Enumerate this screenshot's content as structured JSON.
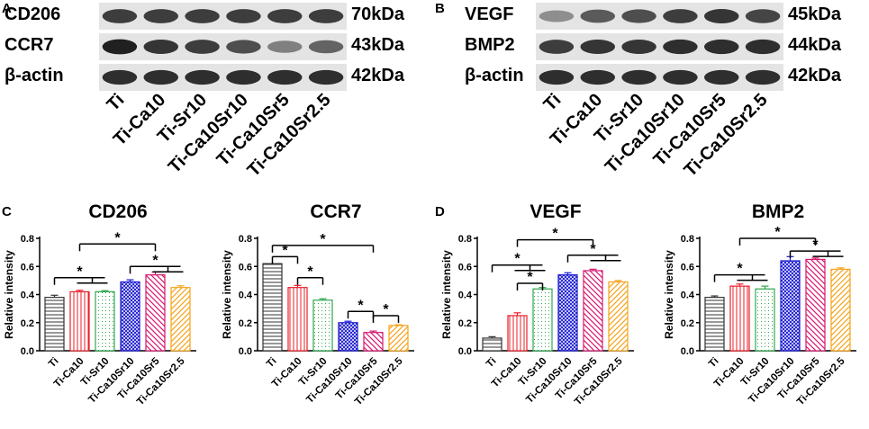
{
  "blots": [
    {
      "panel": "A",
      "rows": [
        {
          "label": "CD206",
          "size": "70kDa",
          "intensities": [
            0.8,
            0.8,
            0.8,
            0.8,
            0.8,
            0.8
          ]
        },
        {
          "label": "CCR7",
          "size": "43kDa",
          "intensities": [
            1.0,
            0.85,
            0.8,
            0.7,
            0.35,
            0.55
          ]
        },
        {
          "label": "β-actin",
          "size": "42kDa",
          "intensities": [
            0.9,
            0.9,
            0.9,
            0.9,
            0.9,
            0.9
          ]
        }
      ],
      "lanes": [
        "Ti",
        "Ti-Ca10",
        "Ti-Sr10",
        "Ti-Ca10Sr10",
        "Ti-Ca10Sr5",
        "Ti-Ca10Sr2.5"
      ]
    },
    {
      "panel": "B",
      "rows": [
        {
          "label": "VEGF",
          "size": "45kDa",
          "intensities": [
            0.25,
            0.6,
            0.7,
            0.8,
            0.85,
            0.75
          ]
        },
        {
          "label": "BMP2",
          "size": "44kDa",
          "intensities": [
            0.8,
            0.85,
            0.85,
            0.9,
            0.9,
            0.9
          ]
        },
        {
          "label": "β-actin",
          "size": "42kDa",
          "intensities": [
            0.9,
            0.9,
            0.9,
            0.9,
            0.9,
            0.9
          ]
        }
      ],
      "lanes": [
        "Ti",
        "Ti-Ca10",
        "Ti-Sr10",
        "Ti-Ca10Sr10",
        "Ti-Ca10Sr5",
        "Ti-Ca10Sr2.5"
      ]
    }
  ],
  "series_colors": [
    "#333333",
    "#e8202a",
    "#2fa84f",
    "#1a1ad1",
    "#d6186f",
    "#f4a31c"
  ],
  "chart_data": [
    {
      "panel": "C",
      "type": "bar",
      "title": "CD206",
      "ylabel": "Relative intensity",
      "ylim": [
        0,
        0.8
      ],
      "yticks": [
        "0.0",
        "0.2",
        "0.4",
        "0.6",
        "0.8"
      ],
      "categories": [
        "Ti",
        "Ti-Ca10",
        "Ti-Sr10",
        "Ti-Ca10Sr10",
        "Ti-Ca10Sr5",
        "Ti-Ca10Sr2.5"
      ],
      "values": [
        0.38,
        0.42,
        0.42,
        0.49,
        0.54,
        0.45
      ],
      "errors": [
        0.015,
        0.01,
        0.008,
        0.015,
        0.02,
        0.012
      ],
      "sig": [
        {
          "from": 0,
          "to": [
            1,
            2
          ],
          "y": 0.52,
          "label": "*"
        },
        {
          "from": 3,
          "to": [
            4,
            5
          ],
          "y": 0.6,
          "label": "*"
        },
        {
          "from": 1,
          "to": [
            4
          ],
          "y": 0.76,
          "label": "*"
        }
      ]
    },
    {
      "panel": "C",
      "type": "bar",
      "title": "CCR7",
      "ylabel": "Relative intensity",
      "ylim": [
        0,
        0.8
      ],
      "yticks": [
        "0.0",
        "0.2",
        "0.4",
        "0.6",
        "0.8"
      ],
      "categories": [
        "Ti",
        "Ti-Ca10",
        "Ti-Sr10",
        "Ti-Ca10Sr10",
        "Ti-Ca10Sr5",
        "Ti-Ca10Sr2.5"
      ],
      "values": [
        0.62,
        0.45,
        0.36,
        0.2,
        0.13,
        0.18
      ],
      "errors": [
        0.0,
        0.015,
        0.01,
        0.01,
        0.01,
        0.005
      ],
      "sig": [
        {
          "from": 0,
          "to": [
            1
          ],
          "y": 0.67,
          "label": "*"
        },
        {
          "from": 1,
          "to": [
            2
          ],
          "y": 0.52,
          "label": "*"
        },
        {
          "from": 3,
          "to": [
            4
          ],
          "y": 0.28,
          "label": "*"
        },
        {
          "from": 4,
          "to": [
            5
          ],
          "y": 0.25,
          "label": "*"
        },
        {
          "from": 0,
          "to": [
            4
          ],
          "y": 0.75,
          "label": "*"
        }
      ]
    },
    {
      "panel": "D",
      "type": "bar",
      "title": "VEGF",
      "ylabel": "Relative intensity",
      "ylim": [
        0,
        0.8
      ],
      "yticks": [
        "0.0",
        "0.2",
        "0.4",
        "0.6",
        "0.8"
      ],
      "categories": [
        "Ti",
        "Ti-Ca10",
        "Ti-Sr10",
        "Ti-Ca10Sr10",
        "Ti-Ca10Sr5",
        "Ti-Ca10Sr2.5"
      ],
      "values": [
        0.09,
        0.25,
        0.44,
        0.54,
        0.57,
        0.49
      ],
      "errors": [
        0.01,
        0.02,
        0.01,
        0.015,
        0.01,
        0.01
      ],
      "sig": [
        {
          "from": 0,
          "to": [
            1,
            2
          ],
          "y": 0.61,
          "label": "*"
        },
        {
          "from": 1,
          "to": [
            2
          ],
          "y": 0.48,
          "label": "*"
        },
        {
          "from": 3,
          "to": [
            4,
            5
          ],
          "y": 0.68,
          "label": "*"
        },
        {
          "from": 1,
          "to": [
            4
          ],
          "y": 0.79,
          "label": "*"
        }
      ]
    },
    {
      "panel": "D",
      "type": "bar",
      "title": "BMP2",
      "ylabel": "Relative intensity",
      "ylim": [
        0,
        0.8
      ],
      "yticks": [
        "0.0",
        "0.2",
        "0.4",
        "0.6",
        "0.8"
      ],
      "categories": [
        "Ti",
        "Ti-Ca10",
        "Ti-Sr10",
        "Ti-Ca10Sr10",
        "Ti-Ca10Sr5",
        "Ti-Ca10Sr2.5"
      ],
      "values": [
        0.38,
        0.46,
        0.44,
        0.64,
        0.65,
        0.58
      ],
      "errors": [
        0.01,
        0.015,
        0.02,
        0.03,
        0.01,
        0.01
      ],
      "sig": [
        {
          "from": 0,
          "to": [
            1,
            2
          ],
          "y": 0.54,
          "label": "*"
        },
        {
          "from": 3,
          "to": [
            4,
            5
          ],
          "y": 0.71,
          "label": "*"
        },
        {
          "from": 1,
          "to": [
            4
          ],
          "y": 0.8,
          "label": "*"
        }
      ]
    }
  ]
}
